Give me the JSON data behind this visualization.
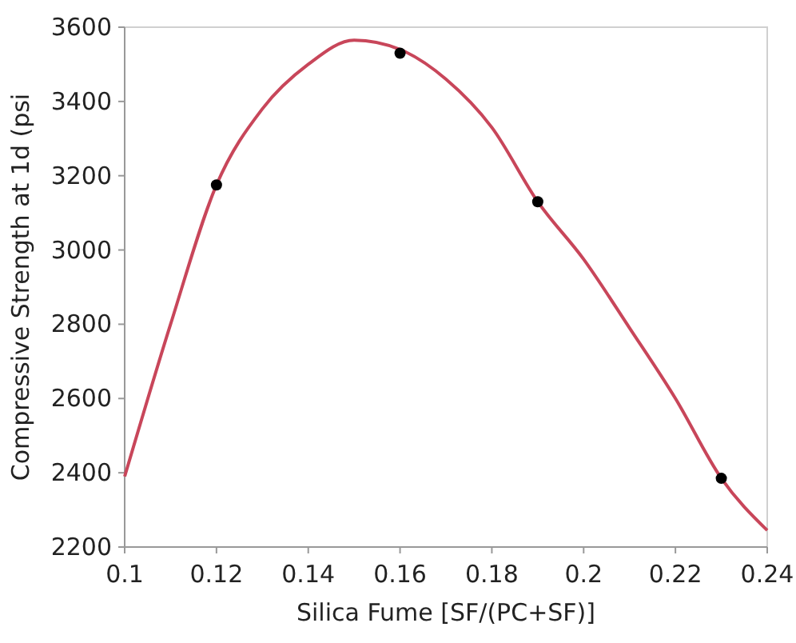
{
  "chart_data": {
    "type": "line",
    "xlabel": "Silica Fume [SF/(PC+SF)]",
    "ylabel": "Compressive Strength at 1d (psi",
    "xlim": [
      0.1,
      0.24
    ],
    "xticks": [
      {
        "value": 0.1,
        "label": "0.1"
      },
      {
        "value": 0.12,
        "label": "0.12"
      },
      {
        "value": 0.14,
        "label": "0.14"
      },
      {
        "value": 0.16,
        "label": "0.16"
      },
      {
        "value": 0.18,
        "label": "0.18"
      },
      {
        "value": 0.2,
        "label": "0.2"
      },
      {
        "value": 0.22,
        "label": "0.22"
      },
      {
        "value": 0.24,
        "label": "0.24"
      }
    ],
    "ylim": [
      2200,
      3600
    ],
    "yticks": [
      2200,
      2400,
      2600,
      2800,
      3000,
      3200,
      3400,
      3600
    ],
    "grid": false,
    "series": [
      {
        "color": "#c8465a",
        "marker": "none",
        "x": [
          0.1,
          0.11,
          0.12,
          0.13,
          0.14,
          0.15,
          0.16,
          0.17,
          0.18,
          0.19,
          0.2,
          0.21,
          0.22,
          0.23,
          0.24
        ],
        "values": [
          2390,
          2800,
          3175,
          3380,
          3500,
          3565,
          3540,
          3460,
          3330,
          3130,
          2975,
          2790,
          2600,
          2385,
          2245
        ]
      },
      {
        "type": "scatter",
        "color": "#000000",
        "marker": "circle",
        "x": [
          0.12,
          0.16,
          0.19,
          0.23
        ],
        "values": [
          3175,
          3530,
          3130,
          2385
        ]
      }
    ]
  }
}
